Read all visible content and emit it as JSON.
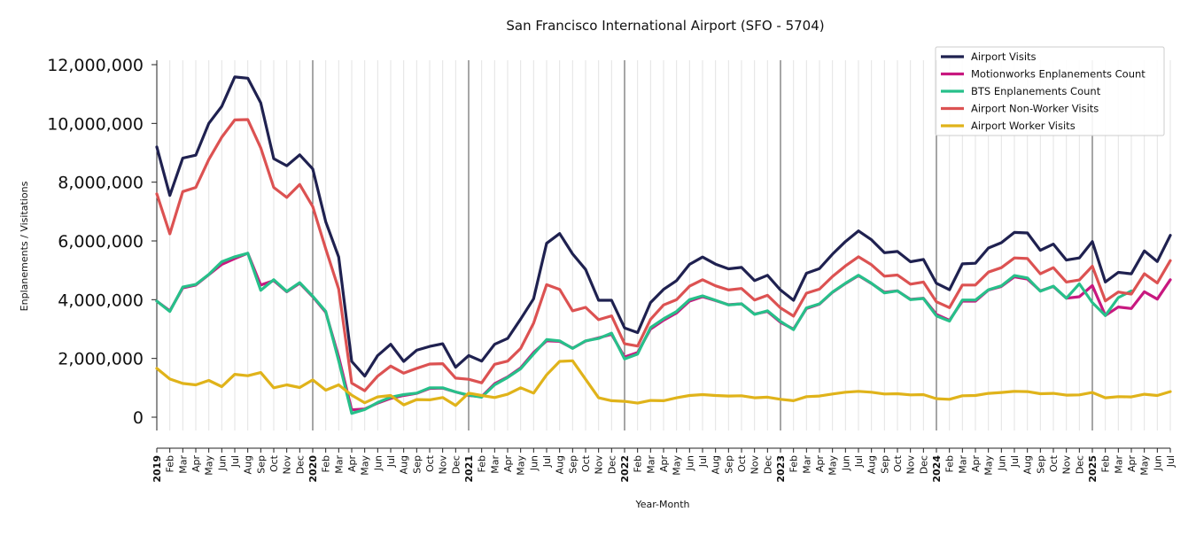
{
  "chart_data": {
    "type": "line",
    "title": "San Francisco International Airport (SFO - 5704)",
    "xlabel": "Year-Month",
    "ylabel": "Enplanements / Visitations",
    "ylim": [
      -500000,
      12200000
    ],
    "yticks": [
      0,
      2000000,
      4000000,
      6000000,
      8000000,
      10000000,
      12000000
    ],
    "ytick_labels": [
      "0",
      "2,000,000",
      "4,000,000",
      "6,000,000",
      "8,000,000",
      "10,000,000",
      "12,000,000"
    ],
    "legend_position": "top-right",
    "grid": "vertical lines per month; darker lines at year starts",
    "x": [
      "2019",
      "Feb",
      "Mar",
      "Apr",
      "May",
      "Jun",
      "Jul",
      "Aug",
      "Sep",
      "Oct",
      "Nov",
      "Dec",
      "2020",
      "Feb",
      "Mar",
      "Apr",
      "May",
      "Jun",
      "Jul",
      "Aug",
      "Sep",
      "Oct",
      "Nov",
      "Dec",
      "2021",
      "Feb",
      "Mar",
      "Apr",
      "May",
      "Jun",
      "Jul",
      "Aug",
      "Sep",
      "Oct",
      "Nov",
      "Dec",
      "2022",
      "Feb",
      "Mar",
      "Apr",
      "May",
      "Jun",
      "Jul",
      "Aug",
      "Sep",
      "Oct",
      "Nov",
      "Dec",
      "2023",
      "Feb",
      "Mar",
      "Apr",
      "May",
      "Jun",
      "Jul",
      "Aug",
      "Sep",
      "Oct",
      "Nov",
      "Dec",
      "2024",
      "Feb",
      "Mar",
      "Apr",
      "May",
      "Jun",
      "Jul",
      "Aug",
      "Sep",
      "Oct",
      "Nov",
      "Dec",
      "2025",
      "Feb",
      "Mar",
      "Apr",
      "May",
      "Jun",
      "Jul"
    ],
    "year_tick_labels": [
      "2019",
      "2020",
      "2021",
      "2022",
      "2023",
      "2024",
      "2025"
    ],
    "series": [
      {
        "name": "Airport Visits",
        "color": "#1f2150",
        "values": [
          9200000,
          7550000,
          8820000,
          8920000,
          10000000,
          10580000,
          11580000,
          11540000,
          10700000,
          8800000,
          8560000,
          8930000,
          8450000,
          6650000,
          5450000,
          1900000,
          1400000,
          2100000,
          2480000,
          1900000,
          2280000,
          2410000,
          2500000,
          1700000,
          2100000,
          1910000,
          2480000,
          2680000,
          3340000,
          4030000,
          5920000,
          6250000,
          5560000,
          5030000,
          3980000,
          3980000,
          3040000,
          2880000,
          3900000,
          4350000,
          4650000,
          5200000,
          5450000,
          5210000,
          5050000,
          5100000,
          4650000,
          4830000,
          4330000,
          3980000,
          4900000,
          5060000,
          5550000,
          5980000,
          6340000,
          6040000,
          5600000,
          5640000,
          5290000,
          5370000,
          4560000,
          4340000,
          5220000,
          5240000,
          5760000,
          5940000,
          6290000,
          6270000,
          5680000,
          5890000,
          5350000,
          5420000,
          5980000,
          4600000,
          4930000,
          4880000,
          5660000,
          5300000,
          6190000
        ]
      },
      {
        "name": "Motionworks Enplanements Count",
        "color": "#c8187f",
        "values": [
          3950000,
          3620000,
          4400000,
          4500000,
          4850000,
          5200000,
          5400000,
          5580000,
          4500000,
          4650000,
          4270000,
          4560000,
          4100000,
          3570000,
          2050000,
          250000,
          280000,
          480000,
          640000,
          740000,
          810000,
          980000,
          990000,
          860000,
          740000,
          700000,
          1140000,
          1370000,
          1680000,
          2200000,
          2600000,
          2580000,
          2350000,
          2590000,
          2700000,
          2820000,
          2050000,
          2200000,
          3000000,
          3300000,
          3550000,
          3950000,
          4100000,
          3970000,
          3830000,
          3860000,
          3510000,
          3600000,
          3230000,
          3000000,
          3700000,
          3850000,
          4250000,
          4550000,
          4820000,
          4550000,
          4250000,
          4300000,
          4010000,
          4050000,
          3500000,
          3300000,
          3950000,
          3950000,
          4330000,
          4450000,
          4780000,
          4700000,
          4300000,
          4450000,
          4050000,
          4100000,
          4480000,
          3460000,
          3750000,
          3700000,
          4270000,
          4020000,
          4680000
        ]
      },
      {
        "name": "BTS Enplanements Count",
        "color": "#27c08a",
        "values": [
          3950000,
          3600000,
          4430000,
          4520000,
          4860000,
          5290000,
          5460000,
          5580000,
          4320000,
          4680000,
          4280000,
          4580000,
          4120000,
          3600000,
          1920000,
          130000,
          260000,
          500000,
          680000,
          770000,
          820000,
          1000000,
          1000000,
          860000,
          750000,
          680000,
          1100000,
          1350000,
          1650000,
          2150000,
          2640000,
          2600000,
          2340000,
          2600000,
          2680000,
          2860000,
          1980000,
          2150000,
          3050000,
          3350000,
          3600000,
          4000000,
          4130000,
          3980000,
          3820000,
          3860000,
          3500000,
          3620000,
          3260000,
          2980000,
          3720000,
          3860000,
          4260000,
          4560000,
          4830000,
          4560000,
          4230000,
          4300000,
          4000000,
          4040000,
          3450000,
          3270000,
          3990000,
          3990000,
          4340000,
          4470000,
          4820000,
          4740000,
          4290000,
          4460000,
          4050000,
          4540000,
          3900000,
          3460000,
          4070000,
          4300000,
          null,
          null,
          null
        ]
      },
      {
        "name": "Airport Non-Worker Visits",
        "color": "#dc5252",
        "values": [
          7600000,
          6240000,
          7680000,
          7820000,
          8770000,
          9530000,
          10120000,
          10130000,
          9170000,
          7820000,
          7480000,
          7920000,
          7170000,
          5730000,
          4360000,
          1160000,
          900000,
          1400000,
          1740000,
          1500000,
          1660000,
          1810000,
          1820000,
          1330000,
          1290000,
          1170000,
          1800000,
          1910000,
          2340000,
          3200000,
          4510000,
          4350000,
          3620000,
          3740000,
          3320000,
          3450000,
          2500000,
          2420000,
          3330000,
          3820000,
          4000000,
          4460000,
          4680000,
          4470000,
          4330000,
          4380000,
          3990000,
          4150000,
          3720000,
          3440000,
          4220000,
          4360000,
          4790000,
          5150000,
          5460000,
          5190000,
          4800000,
          4840000,
          4530000,
          4600000,
          3930000,
          3730000,
          4500000,
          4500000,
          4940000,
          5090000,
          5420000,
          5400000,
          4880000,
          5090000,
          4600000,
          4670000,
          5140000,
          3960000,
          4260000,
          4190000,
          4880000,
          4570000,
          5330000
        ]
      },
      {
        "name": "Airport Worker Visits",
        "color": "#e0b31a",
        "values": [
          1660000,
          1300000,
          1150000,
          1100000,
          1250000,
          1040000,
          1460000,
          1410000,
          1520000,
          1000000,
          1100000,
          1010000,
          1270000,
          920000,
          1100000,
          750000,
          490000,
          690000,
          740000,
          420000,
          600000,
          590000,
          670000,
          400000,
          820000,
          740000,
          670000,
          780000,
          1000000,
          820000,
          1440000,
          1900000,
          1920000,
          1290000,
          660000,
          560000,
          540000,
          480000,
          570000,
          560000,
          660000,
          740000,
          770000,
          740000,
          720000,
          730000,
          660000,
          680000,
          610000,
          560000,
          700000,
          720000,
          790000,
          850000,
          880000,
          850000,
          790000,
          800000,
          760000,
          770000,
          630000,
          610000,
          730000,
          740000,
          810000,
          840000,
          880000,
          870000,
          800000,
          810000,
          750000,
          760000,
          840000,
          660000,
          700000,
          690000,
          780000,
          740000,
          870000
        ]
      }
    ]
  }
}
